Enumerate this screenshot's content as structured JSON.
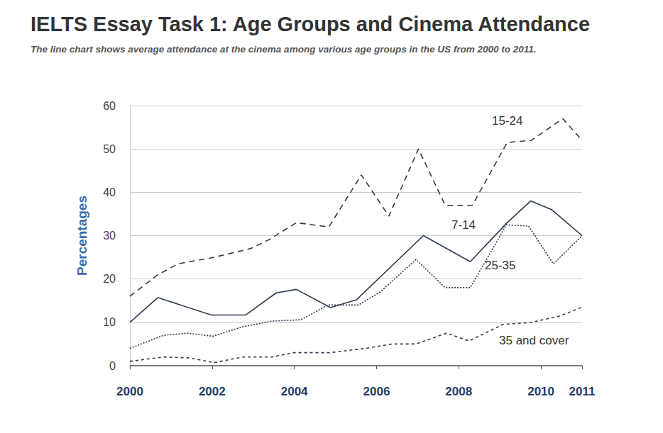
{
  "chart_data": {
    "type": "line",
    "title": "IELTS Essay Task 1: Age Groups and Cinema Attendance",
    "subtitle": "The line chart shows average attendance at the cinema among various age groups in the US from 2000 to 2011.",
    "y_label": "Percentages",
    "xlim": [
      2000,
      2011
    ],
    "xticks": [
      2000,
      2002,
      2004,
      2006,
      2008,
      2010,
      2011
    ],
    "ylim": [
      0,
      60
    ],
    "yticks": [
      0,
      10,
      20,
      30,
      40,
      50,
      60
    ],
    "grid": true,
    "series": [
      {
        "name": "15-24",
        "color": "#2b3a4f",
        "line_style": "dashed",
        "x": [
          2000,
          2000.68,
          2001.18,
          2002.05,
          2002.93,
          2003.37,
          2004.05,
          2004.84,
          2005.63,
          2006.3,
          2007.02,
          2007.67,
          2008.33,
          2009.18,
          2009.77,
          2010.53,
          2011
        ],
        "values": [
          16,
          21,
          23.5,
          25,
          27,
          29,
          33,
          32,
          44,
          34.5,
          50,
          37,
          37,
          51.5,
          52,
          57,
          52
        ]
      },
      {
        "name": "7-14",
        "color": "#2b3a4f",
        "line_style": "solid",
        "x": [
          2000,
          2000.68,
          2001.98,
          2002.82,
          2003.56,
          2004.05,
          2004.88,
          2005.51,
          2007.14,
          2008.28,
          2009.18,
          2009.75,
          2010.26,
          2011
        ],
        "values": [
          10,
          15.7,
          11.7,
          11.7,
          16.8,
          17.6,
          13.4,
          15.2,
          30,
          24,
          33,
          38,
          36,
          30
        ]
      },
      {
        "name": "25-35",
        "color": "#2b3a4f",
        "line_style": "dotted",
        "x": [
          2000,
          2000.82,
          2001.39,
          2002.02,
          2002.75,
          2003.46,
          2004.16,
          2004.82,
          2005.56,
          2006.09,
          2006.96,
          2007.67,
          2008.28,
          2009.16,
          2009.7,
          2010.3,
          2011
        ],
        "values": [
          4,
          7,
          7.5,
          6.8,
          9,
          10.3,
          10.6,
          14,
          14,
          17,
          24.5,
          18,
          18,
          32.5,
          32.2,
          23.5,
          30
        ]
      },
      {
        "name": "35 and cover",
        "color": "#2b3a4f",
        "line_style": "dashed",
        "x": [
          2000,
          2000.82,
          2001.44,
          2002.05,
          2002.75,
          2003.46,
          2003.98,
          2004.86,
          2005.74,
          2006.37,
          2006.96,
          2007.7,
          2008.25,
          2009.07,
          2009.77,
          2010.47,
          2011
        ],
        "values": [
          1,
          2,
          1.8,
          0.7,
          2,
          2,
          3,
          3,
          4,
          5,
          5,
          7.5,
          5.7,
          9.5,
          10,
          11.5,
          13.5
        ]
      }
    ]
  }
}
